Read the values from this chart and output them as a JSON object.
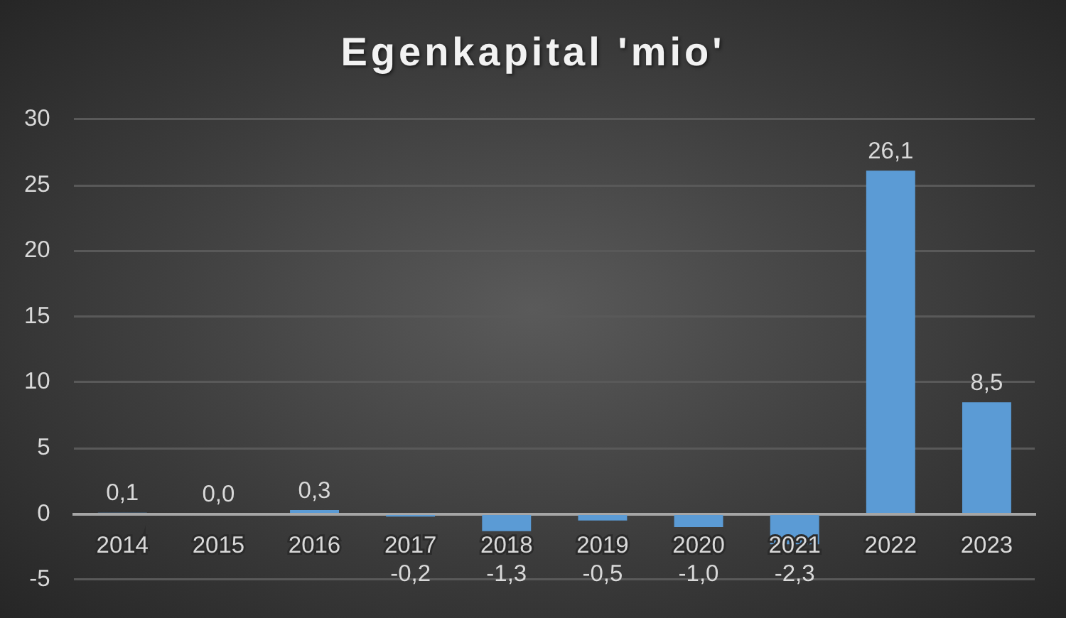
{
  "chart_data": {
    "type": "bar",
    "title": "Egenkapital 'mio'",
    "categories": [
      "2014",
      "2015",
      "2016",
      "2017",
      "2018",
      "2019",
      "2020",
      "2021",
      "2022",
      "2023"
    ],
    "values": [
      0.1,
      0.0,
      0.3,
      -0.2,
      -1.3,
      -0.5,
      -1.0,
      -2.3,
      26.1,
      8.5
    ],
    "value_labels": [
      "0,1",
      "0,0",
      "0,3",
      "-0,2",
      "-1,3",
      "-0,5",
      "-1,0",
      "-2,3",
      "26,1",
      "8,5"
    ],
    "color": "#5b9bd5",
    "ylim": [
      -5,
      30
    ],
    "yticks": [
      -5,
      0,
      5,
      10,
      15,
      20,
      25,
      30
    ],
    "grid": "y"
  }
}
